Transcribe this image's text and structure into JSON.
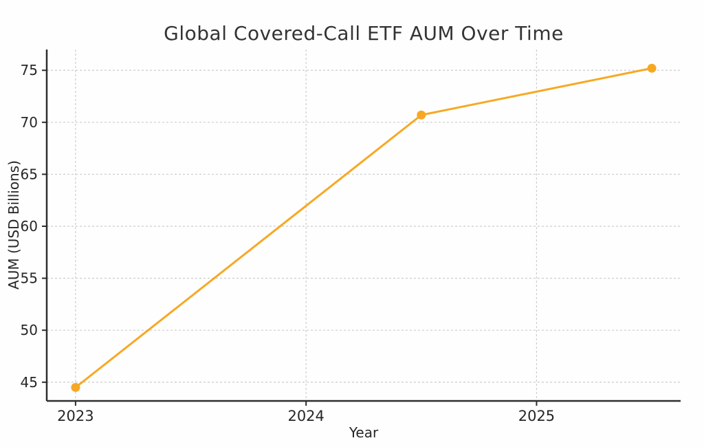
{
  "chart_data": {
    "type": "line",
    "title": "Global Covered-Call ETF AUM Over Time",
    "xlabel": "Year",
    "ylabel": "AUM (USD Billions)",
    "x": [
      2023.0,
      2024.5,
      2025.5
    ],
    "values": [
      44.5,
      70.7,
      75.2
    ],
    "xticks": [
      2023,
      2024,
      2025
    ],
    "xtick_labels": [
      "2023",
      "2024",
      "2025"
    ],
    "yticks": [
      45,
      50,
      55,
      60,
      65,
      70,
      75
    ],
    "ytick_labels": [
      "45",
      "50",
      "55",
      "60",
      "65",
      "70",
      "75"
    ],
    "xlim": [
      2022.875,
      2025.625
    ],
    "ylim": [
      43.2,
      77.0
    ],
    "grid": true,
    "grid_style": "dashed",
    "legend": false,
    "line_color": "#F7A823",
    "marker": "circle"
  },
  "style": {
    "background_color": "#fefefe",
    "grid_color": "#cccccc",
    "spine_color": "#2d2d2d",
    "tick_text_color": "#262626",
    "title_color": "#333333"
  }
}
